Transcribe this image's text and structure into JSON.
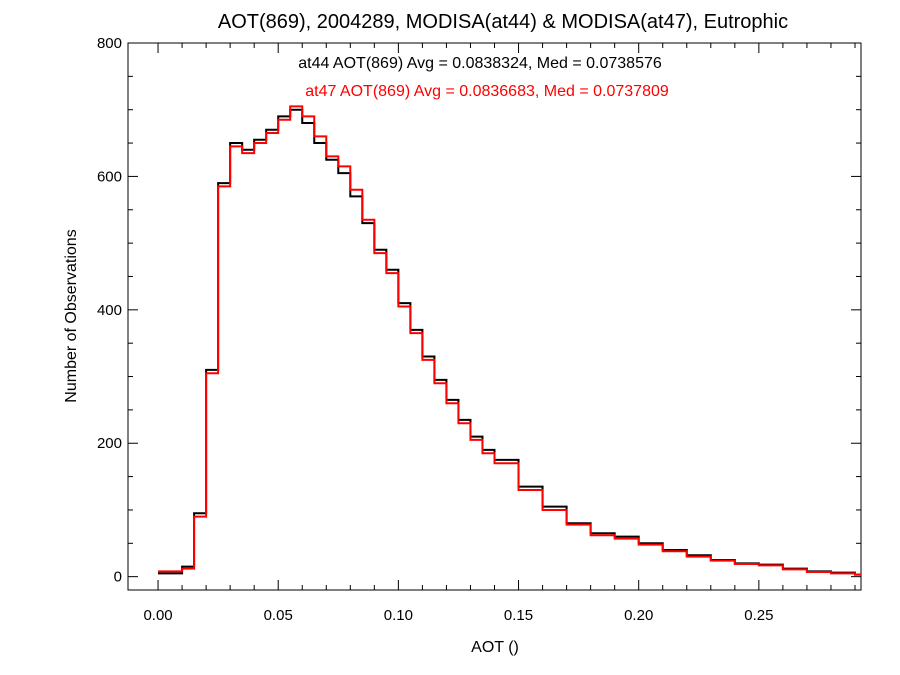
{
  "chart_data": {
    "type": "line",
    "title": "AOT(869), 2004289, MODISA(at44) & MODISA(at47), Eutrophic",
    "xlabel": "AOT ()",
    "ylabel": "Number of Observations",
    "xlim": [
      -0.0125,
      0.2925
    ],
    "ylim": [
      -20,
      800
    ],
    "xticks": [
      0.0,
      0.05,
      0.1,
      0.15,
      0.2,
      0.25
    ],
    "xtick_labels": [
      "0.00",
      "0.05",
      "0.10",
      "0.15",
      "0.20",
      "0.25"
    ],
    "yticks": [
      0,
      200,
      400,
      600,
      800
    ],
    "ytick_labels": [
      "0",
      "200",
      "400",
      "600",
      "800"
    ],
    "grid": false,
    "legend": "none",
    "annotations": [
      {
        "text": "at44 AOT(869) Avg = 0.0838324, Med = 0.0738576",
        "color": "#000000"
      },
      {
        "text": "at47 AOT(869) Avg = 0.0836683, Med = 0.0737809",
        "color": "#ff0000"
      }
    ],
    "series": [
      {
        "color": "#000000",
        "x": [
          0.0,
          0.01,
          0.015,
          0.02,
          0.025,
          0.03,
          0.035,
          0.04,
          0.045,
          0.05,
          0.055,
          0.06,
          0.065,
          0.07,
          0.075,
          0.08,
          0.085,
          0.09,
          0.095,
          0.1,
          0.105,
          0.11,
          0.115,
          0.12,
          0.125,
          0.13,
          0.135,
          0.14,
          0.15,
          0.16,
          0.17,
          0.18,
          0.19,
          0.2,
          0.21,
          0.22,
          0.23,
          0.24,
          0.25,
          0.26,
          0.27,
          0.28,
          0.29
        ],
        "y": [
          5,
          15,
          95,
          310,
          590,
          650,
          640,
          655,
          670,
          690,
          700,
          680,
          650,
          625,
          605,
          570,
          530,
          490,
          460,
          410,
          370,
          330,
          295,
          265,
          235,
          210,
          190,
          175,
          135,
          105,
          80,
          65,
          60,
          50,
          40,
          32,
          25,
          20,
          18,
          12,
          8,
          6,
          3
        ]
      },
      {
        "color": "#ff0000",
        "x": [
          0.0,
          0.01,
          0.015,
          0.02,
          0.025,
          0.03,
          0.035,
          0.04,
          0.045,
          0.05,
          0.055,
          0.06,
          0.065,
          0.07,
          0.075,
          0.08,
          0.085,
          0.09,
          0.095,
          0.1,
          0.105,
          0.11,
          0.115,
          0.12,
          0.125,
          0.13,
          0.135,
          0.14,
          0.15,
          0.16,
          0.17,
          0.18,
          0.19,
          0.2,
          0.21,
          0.22,
          0.23,
          0.24,
          0.25,
          0.26,
          0.27,
          0.28,
          0.29
        ],
        "y": [
          8,
          12,
          90,
          305,
          585,
          645,
          635,
          650,
          665,
          685,
          705,
          690,
          660,
          630,
          615,
          580,
          535,
          485,
          455,
          405,
          365,
          325,
          290,
          260,
          230,
          205,
          185,
          170,
          130,
          100,
          78,
          62,
          57,
          48,
          38,
          30,
          24,
          19,
          17,
          11,
          7,
          5,
          3
        ]
      }
    ]
  }
}
